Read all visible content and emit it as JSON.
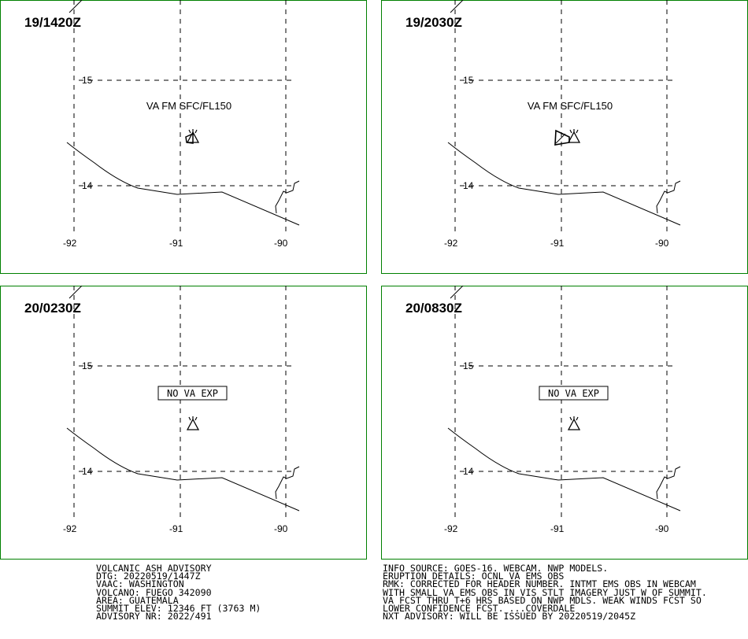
{
  "panels": [
    {
      "time": "19/1420Z",
      "label": "VA FM SFC/FL150",
      "boxed": false,
      "ash": "small"
    },
    {
      "time": "19/2030Z",
      "label": "VA FM SFC/FL150",
      "boxed": false,
      "ash": "large"
    },
    {
      "time": "20/0230Z",
      "label": "NO VA EXP",
      "boxed": true,
      "ash": "none"
    },
    {
      "time": "20/0830Z",
      "label": "NO VA EXP",
      "boxed": true,
      "ash": "none"
    }
  ],
  "grid": {
    "lat_labels": [
      "15",
      "14"
    ],
    "lon_labels": [
      "-92",
      "-91",
      "-90"
    ]
  },
  "colors": {
    "frame": "#008000",
    "lines": "#000000"
  },
  "advisory_left": [
    "VOLCANIC ASH ADVISORY",
    "DTG: 20220519/1447Z",
    "VAAC: WASHINGTON",
    "VOLCANO: FUEGO 342090",
    "AREA: GUATEMALA",
    "SUMMIT ELEV: 12346 FT (3763 M)",
    "ADVISORY NR: 2022/491"
  ],
  "advisory_right": [
    "INFO SOURCE: GOES-16. WEBCAM. NWP MODELS.",
    "ERUPTION DETAILS: OCNL VA EMS OBS",
    "RMK: CORRECTED FOR HEADER NUMBER. INTMT EMS OBS IN WEBCAM",
    "WITH SMALL VA EMS OBS IN VIS STLT IMAGERY JUST W OF SUMMIT.",
    "VA FCST THRU T+6 HRS BASED ON NWP MDLS. WEAK WINDS FCST SO",
    "LOWER CONFIDENCE FCST. ...COVERDALE",
    "NXT ADVISORY: WILL BE ISSUED BY 20220519/2045Z"
  ]
}
